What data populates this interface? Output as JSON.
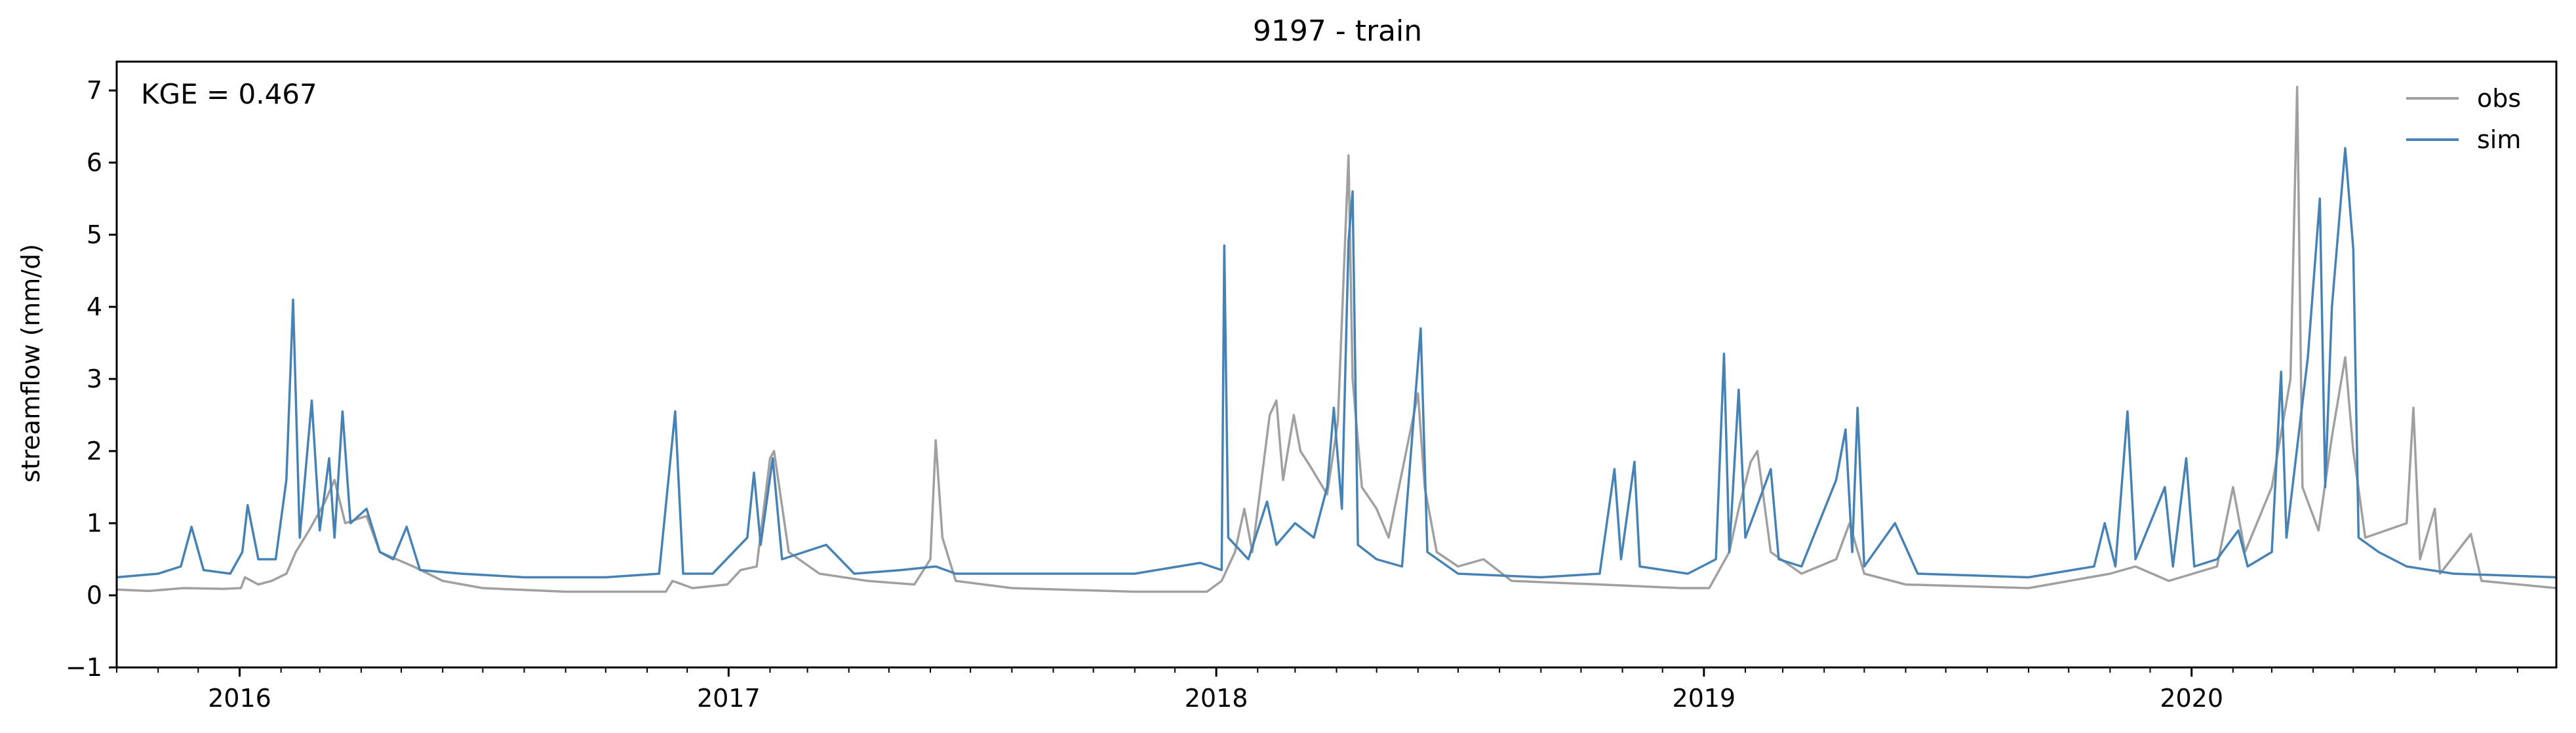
{
  "chart_data": {
    "type": "line",
    "title": "9197 - train",
    "xlabel": "",
    "ylabel": "streamflow (mm/d)",
    "annotation": "KGE = 0.467",
    "legend_position": "top-right",
    "grid": false,
    "xlim": [
      "2015-10-01",
      "2020-09-30"
    ],
    "ylim": [
      -1,
      7.4
    ],
    "yticks": [
      -1,
      0,
      1,
      2,
      3,
      4,
      5,
      6,
      7
    ],
    "xticks": [
      {
        "date": "2016-01-01",
        "label": "2016"
      },
      {
        "date": "2017-01-01",
        "label": "2017"
      },
      {
        "date": "2018-01-01",
        "label": "2018"
      },
      {
        "date": "2019-01-01",
        "label": "2019"
      },
      {
        "date": "2020-01-01",
        "label": "2020"
      }
    ],
    "series": [
      {
        "name": "obs",
        "color": "#a0a0a0",
        "points": [
          [
            "2015-10-01",
            0.08
          ],
          [
            "2015-10-25",
            0.06
          ],
          [
            "2015-11-20",
            0.1
          ],
          [
            "2015-12-20",
            0.09
          ],
          [
            "2016-01-02",
            0.1
          ],
          [
            "2016-01-05",
            0.25
          ],
          [
            "2016-01-15",
            0.15
          ],
          [
            "2016-01-25",
            0.2
          ],
          [
            "2016-02-05",
            0.3
          ],
          [
            "2016-02-12",
            0.6
          ],
          [
            "2016-02-22",
            0.9
          ],
          [
            "2016-03-05",
            1.3
          ],
          [
            "2016-03-12",
            1.6
          ],
          [
            "2016-03-20",
            1.0
          ],
          [
            "2016-04-05",
            1.1
          ],
          [
            "2016-04-15",
            0.6
          ],
          [
            "2016-05-10",
            0.4
          ],
          [
            "2016-06-01",
            0.2
          ],
          [
            "2016-07-01",
            0.1
          ],
          [
            "2016-09-01",
            0.05
          ],
          [
            "2016-11-15",
            0.05
          ],
          [
            "2016-11-20",
            0.2
          ],
          [
            "2016-12-05",
            0.1
          ],
          [
            "2016-12-31",
            0.15
          ],
          [
            "2017-01-10",
            0.35
          ],
          [
            "2017-01-22",
            0.4
          ],
          [
            "2017-02-01",
            1.9
          ],
          [
            "2017-02-04",
            2.0
          ],
          [
            "2017-02-15",
            0.6
          ],
          [
            "2017-03-10",
            0.3
          ],
          [
            "2017-04-15",
            0.2
          ],
          [
            "2017-05-20",
            0.15
          ],
          [
            "2017-06-01",
            0.5
          ],
          [
            "2017-06-05",
            2.15
          ],
          [
            "2017-06-10",
            0.8
          ],
          [
            "2017-06-20",
            0.2
          ],
          [
            "2017-08-01",
            0.1
          ],
          [
            "2017-11-01",
            0.05
          ],
          [
            "2017-12-25",
            0.05
          ],
          [
            "2018-01-05",
            0.2
          ],
          [
            "2018-01-15",
            0.6
          ],
          [
            "2018-01-22",
            1.2
          ],
          [
            "2018-01-28",
            0.6
          ],
          [
            "2018-02-10",
            2.5
          ],
          [
            "2018-02-15",
            2.7
          ],
          [
            "2018-02-20",
            1.6
          ],
          [
            "2018-02-28",
            2.5
          ],
          [
            "2018-03-05",
            2.0
          ],
          [
            "2018-03-12",
            1.8
          ],
          [
            "2018-03-25",
            1.4
          ],
          [
            "2018-04-02",
            2.4
          ],
          [
            "2018-04-10",
            6.1
          ],
          [
            "2018-04-13",
            3.0
          ],
          [
            "2018-04-20",
            1.5
          ],
          [
            "2018-05-01",
            1.2
          ],
          [
            "2018-05-10",
            0.8
          ],
          [
            "2018-06-01",
            2.8
          ],
          [
            "2018-06-06",
            1.5
          ],
          [
            "2018-06-15",
            0.6
          ],
          [
            "2018-07-01",
            0.4
          ],
          [
            "2018-07-20",
            0.5
          ],
          [
            "2018-08-10",
            0.2
          ],
          [
            "2018-10-15",
            0.15
          ],
          [
            "2018-12-15",
            0.1
          ],
          [
            "2019-01-05",
            0.1
          ],
          [
            "2019-01-20",
            0.6
          ],
          [
            "2019-01-27",
            1.2
          ],
          [
            "2019-02-05",
            1.85
          ],
          [
            "2019-02-10",
            2.0
          ],
          [
            "2019-02-20",
            0.6
          ],
          [
            "2019-03-15",
            0.3
          ],
          [
            "2019-04-10",
            0.5
          ],
          [
            "2019-04-20",
            1.0
          ],
          [
            "2019-05-01",
            0.3
          ],
          [
            "2019-06-01",
            0.15
          ],
          [
            "2019-09-01",
            0.1
          ],
          [
            "2019-11-01",
            0.3
          ],
          [
            "2019-11-20",
            0.4
          ],
          [
            "2019-12-15",
            0.2
          ],
          [
            "2020-01-20",
            0.4
          ],
          [
            "2020-02-01",
            1.5
          ],
          [
            "2020-02-10",
            0.6
          ],
          [
            "2020-03-01",
            1.5
          ],
          [
            "2020-03-15",
            3.0
          ],
          [
            "2020-03-20",
            7.05
          ],
          [
            "2020-03-24",
            1.5
          ],
          [
            "2020-04-05",
            0.9
          ],
          [
            "2020-04-15",
            2.2
          ],
          [
            "2020-04-25",
            3.3
          ],
          [
            "2020-05-01",
            2.0
          ],
          [
            "2020-05-10",
            0.8
          ],
          [
            "2020-06-10",
            1.0
          ],
          [
            "2020-06-15",
            2.6
          ],
          [
            "2020-06-20",
            0.5
          ],
          [
            "2020-07-01",
            1.2
          ],
          [
            "2020-07-05",
            0.3
          ],
          [
            "2020-07-28",
            0.85
          ],
          [
            "2020-08-05",
            0.2
          ],
          [
            "2020-09-30",
            0.1
          ]
        ]
      },
      {
        "name": "sim",
        "color": "#4682b4",
        "points": [
          [
            "2015-10-01",
            0.25
          ],
          [
            "2015-11-01",
            0.3
          ],
          [
            "2015-11-18",
            0.4
          ],
          [
            "2015-11-26",
            0.95
          ],
          [
            "2015-12-05",
            0.35
          ],
          [
            "2015-12-25",
            0.3
          ],
          [
            "2016-01-03",
            0.6
          ],
          [
            "2016-01-07",
            1.25
          ],
          [
            "2016-01-15",
            0.5
          ],
          [
            "2016-01-28",
            0.5
          ],
          [
            "2016-02-05",
            1.6
          ],
          [
            "2016-02-10",
            4.1
          ],
          [
            "2016-02-15",
            0.8
          ],
          [
            "2016-02-24",
            2.7
          ],
          [
            "2016-03-01",
            0.9
          ],
          [
            "2016-03-08",
            1.9
          ],
          [
            "2016-03-12",
            0.8
          ],
          [
            "2016-03-18",
            2.55
          ],
          [
            "2016-03-24",
            1.0
          ],
          [
            "2016-04-05",
            1.2
          ],
          [
            "2016-04-15",
            0.6
          ],
          [
            "2016-04-25",
            0.5
          ],
          [
            "2016-05-05",
            0.95
          ],
          [
            "2016-05-15",
            0.35
          ],
          [
            "2016-06-15",
            0.3
          ],
          [
            "2016-08-01",
            0.25
          ],
          [
            "2016-10-01",
            0.25
          ],
          [
            "2016-11-10",
            0.3
          ],
          [
            "2016-11-22",
            2.55
          ],
          [
            "2016-11-28",
            0.3
          ],
          [
            "2016-12-20",
            0.3
          ],
          [
            "2017-01-15",
            0.8
          ],
          [
            "2017-01-20",
            1.7
          ],
          [
            "2017-01-25",
            0.7
          ],
          [
            "2017-02-03",
            1.9
          ],
          [
            "2017-02-10",
            0.5
          ],
          [
            "2017-03-15",
            0.7
          ],
          [
            "2017-04-05",
            0.3
          ],
          [
            "2017-05-10",
            0.35
          ],
          [
            "2017-06-05",
            0.4
          ],
          [
            "2017-06-20",
            0.3
          ],
          [
            "2017-09-01",
            0.3
          ],
          [
            "2017-11-01",
            0.3
          ],
          [
            "2017-12-20",
            0.45
          ],
          [
            "2018-01-05",
            0.35
          ],
          [
            "2018-01-07",
            4.85
          ],
          [
            "2018-01-10",
            0.8
          ],
          [
            "2018-01-25",
            0.5
          ],
          [
            "2018-02-08",
            1.3
          ],
          [
            "2018-02-15",
            0.7
          ],
          [
            "2018-03-01",
            1.0
          ],
          [
            "2018-03-15",
            0.8
          ],
          [
            "2018-03-25",
            1.5
          ],
          [
            "2018-03-30",
            2.6
          ],
          [
            "2018-04-05",
            1.2
          ],
          [
            "2018-04-10",
            4.9
          ],
          [
            "2018-04-13",
            5.6
          ],
          [
            "2018-04-17",
            0.7
          ],
          [
            "2018-05-01",
            0.5
          ],
          [
            "2018-05-20",
            0.4
          ],
          [
            "2018-06-03",
            3.7
          ],
          [
            "2018-06-08",
            0.6
          ],
          [
            "2018-07-01",
            0.3
          ],
          [
            "2018-09-01",
            0.25
          ],
          [
            "2018-10-15",
            0.3
          ],
          [
            "2018-10-26",
            1.75
          ],
          [
            "2018-10-31",
            0.5
          ],
          [
            "2018-11-10",
            1.85
          ],
          [
            "2018-11-14",
            0.4
          ],
          [
            "2018-12-20",
            0.3
          ],
          [
            "2019-01-10",
            0.5
          ],
          [
            "2019-01-16",
            3.35
          ],
          [
            "2019-01-20",
            0.6
          ],
          [
            "2019-01-27",
            2.85
          ],
          [
            "2019-02-01",
            0.8
          ],
          [
            "2019-02-20",
            1.75
          ],
          [
            "2019-02-26",
            0.5
          ],
          [
            "2019-03-15",
            0.4
          ],
          [
            "2019-04-10",
            1.6
          ],
          [
            "2019-04-17",
            2.3
          ],
          [
            "2019-04-22",
            0.6
          ],
          [
            "2019-04-26",
            2.6
          ],
          [
            "2019-05-01",
            0.4
          ],
          [
            "2019-05-24",
            1.0
          ],
          [
            "2019-06-10",
            0.3
          ],
          [
            "2019-09-01",
            0.25
          ],
          [
            "2019-10-20",
            0.4
          ],
          [
            "2019-10-28",
            1.0
          ],
          [
            "2019-11-05",
            0.4
          ],
          [
            "2019-11-14",
            2.55
          ],
          [
            "2019-11-20",
            0.5
          ],
          [
            "2019-12-12",
            1.5
          ],
          [
            "2019-12-18",
            0.4
          ],
          [
            "2019-12-28",
            1.9
          ],
          [
            "2020-01-03",
            0.4
          ],
          [
            "2020-01-20",
            0.5
          ],
          [
            "2020-02-05",
            0.9
          ],
          [
            "2020-02-12",
            0.4
          ],
          [
            "2020-03-01",
            0.6
          ],
          [
            "2020-03-08",
            3.1
          ],
          [
            "2020-03-12",
            0.8
          ],
          [
            "2020-03-28",
            3.3
          ],
          [
            "2020-04-06",
            5.5
          ],
          [
            "2020-04-10",
            1.5
          ],
          [
            "2020-04-15",
            4.0
          ],
          [
            "2020-04-25",
            6.2
          ],
          [
            "2020-05-01",
            4.8
          ],
          [
            "2020-05-05",
            0.8
          ],
          [
            "2020-05-20",
            0.6
          ],
          [
            "2020-06-10",
            0.4
          ],
          [
            "2020-07-15",
            0.3
          ],
          [
            "2020-09-30",
            0.25
          ]
        ]
      }
    ]
  }
}
